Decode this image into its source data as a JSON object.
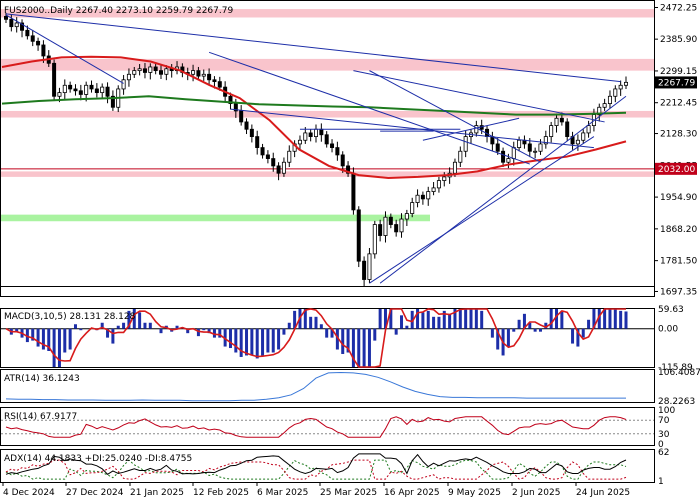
{
  "colors": {
    "background": "#ffffff",
    "candle": "#000000",
    "pink_zone": "#f9c4cc",
    "green_zone": "#a9f3a0",
    "trend_line": "#1d2ea8",
    "ma_fast": "#d81b1b",
    "ma_slow": "#1e7a1e",
    "level_line": "#c0001a",
    "level_tag": "#c0001a",
    "price_tag": "#000000",
    "macd_hist": "#1d2ea8",
    "macd_signal": "#d81b1b",
    "atr_line": "#3a78d8",
    "rsi_line": "#c0001a",
    "rsi_level": "#888888",
    "adx_line": "#000000",
    "di_plus": "#1e7a1e",
    "di_minus": "#c0001a"
  },
  "main": {
    "title": "FUS2000..Daily  2267.40  2273.10  2259.79  2267.79",
    "y_ticks": [
      "2472.25",
      "2385.90",
      "2299.15",
      "2212.45",
      "2128.30",
      "2041.55",
      "1954.90",
      "1868.20",
      "1781.50",
      "1697.35"
    ],
    "y_tick_values": [
      2472.25,
      2385.9,
      2299.15,
      2212.45,
      2128.3,
      2041.55,
      1954.9,
      1868.2,
      1781.5,
      1697.35
    ],
    "ylim": [
      1685,
      2490
    ],
    "last_price_label": "2267.79",
    "last_price": 2267.79,
    "level_label": "2032.00",
    "level": 2032.0
  },
  "x_labels": [
    "4 Dec 2024",
    "27 Dec 2024",
    "21 Jan 2025",
    "12 Feb 2025",
    "6 Mar 2025",
    "25 Mar 2025",
    "16 Apr 2025",
    "9 May 2025",
    "2 Jun 2025",
    "24 Jun 2025"
  ],
  "chart_data": [
    {
      "type": "candlestick",
      "title": "FUS2000..Daily",
      "last_bar": {
        "open": 2267.4,
        "high": 2273.1,
        "low": 2259.79,
        "close": 2267.79
      },
      "closes": [
        2440,
        2420,
        2430,
        2410,
        2395,
        2380,
        2370,
        2340,
        2320,
        2230,
        2240,
        2260,
        2250,
        2245,
        2235,
        2260,
        2250,
        2240,
        2255,
        2230,
        2200,
        2250,
        2275,
        2290,
        2300,
        2305,
        2295,
        2310,
        2300,
        2290,
        2305,
        2300,
        2310,
        2295,
        2290,
        2300,
        2285,
        2290,
        2275,
        2270,
        2255,
        2230,
        2210,
        2190,
        2160,
        2140,
        2120,
        2090,
        2070,
        2060,
        2040,
        2020,
        2050,
        2080,
        2100,
        2110,
        2130,
        2120,
        2140,
        2125,
        2100,
        2090,
        2070,
        2040,
        2020,
        1920,
        1780,
        1730,
        1800,
        1880,
        1850,
        1900,
        1880,
        1860,
        1895,
        1910,
        1940,
        1960,
        1950,
        1970,
        1980,
        2000,
        2010,
        2020,
        2050,
        2080,
        2120,
        2130,
        2150,
        2140,
        2120,
        2100,
        2080,
        2050,
        2060,
        2090,
        2110,
        2100,
        2080,
        2080,
        2100,
        2120,
        2150,
        2170,
        2160,
        2120,
        2100,
        2110,
        2130,
        2150,
        2180,
        2200,
        2210,
        2230,
        2250,
        2260,
        2268
      ],
      "bands": {
        "pink_zones": [
          [
            2445,
            2468
          ],
          [
            2300,
            2332
          ],
          [
            2172,
            2190
          ],
          [
            2010,
            2025
          ]
        ],
        "green_zone": [
          1889,
          1907
        ]
      },
      "series": [
        {
          "values": [
            2310,
            2325,
            2336,
            2338,
            2336,
            2325,
            2300,
            2260,
            2225,
            2165,
            2085,
            2040,
            2015,
            2007,
            2010,
            2015,
            2025,
            2043,
            2055,
            2065,
            2085,
            2107
          ]
        },
        {
          "values": [
            2210,
            2217,
            2222,
            2225,
            2230,
            2222,
            2215,
            2208,
            2205,
            2202,
            2200,
            2195,
            2190,
            2185,
            2180,
            2180,
            2182,
            2185
          ]
        }
      ],
      "horizontal_line": 2032.0
    },
    {
      "type": "bar",
      "title": "MACD(3,10,5) 28.131 28.128",
      "y_ticks": [
        "59.63",
        "0.00",
        "-115.89"
      ],
      "ylim": [
        -115.89,
        59.63
      ],
      "macd_line": 28.131,
      "signal_line": 28.128
    },
    {
      "type": "line",
      "title": "ATR(14) 36.1243",
      "y_ticks": [
        "106.4087",
        "28.2263"
      ],
      "ylim": [
        28.2263,
        106.4087
      ],
      "values": [
        34,
        33,
        33,
        32,
        32,
        31,
        31,
        31,
        30,
        30,
        30,
        31,
        30,
        30,
        30,
        29,
        29,
        29,
        29,
        30,
        30,
        33,
        37,
        45,
        62,
        90,
        104,
        105,
        104,
        100,
        92,
        80,
        66,
        54,
        46,
        40,
        38,
        38,
        37,
        37,
        37,
        37,
        36,
        36,
        36,
        36,
        36,
        36,
        36,
        36,
        36
      ]
    },
    {
      "type": "line",
      "title": "RSI(14) 67.9177",
      "y_ticks": [
        "100",
        "70",
        "30",
        "0"
      ],
      "ylim": [
        0,
        100
      ],
      "levels": [
        70,
        30
      ],
      "last": 67.9177
    },
    {
      "type": "line",
      "title": "ADX(14) 44.1833 +DI:25.0240 -DI:8.4755",
      "y_ticks": [
        "62",
        "1"
      ],
      "ylim": [
        1,
        62
      ],
      "adx": 44.1833,
      "di_plus": 25.024,
      "di_minus": 8.4755
    }
  ],
  "panels": {
    "macd": {
      "title": "MACD(3,10,5) 28.131 28.128",
      "ticks": [
        "59.63",
        "0.00",
        "-115.89"
      ]
    },
    "atr": {
      "title": "ATR(14) 36.1243",
      "ticks": [
        "106.4087",
        "28.2263"
      ]
    },
    "rsi": {
      "title": "RSI(14) 67.9177",
      "ticks": [
        "100",
        "70",
        "30",
        "0"
      ]
    },
    "adx": {
      "title": "ADX(14) 44.1833 +DI:25.0240 -DI:8.4755",
      "ticks": [
        "62",
        "1"
      ]
    }
  }
}
